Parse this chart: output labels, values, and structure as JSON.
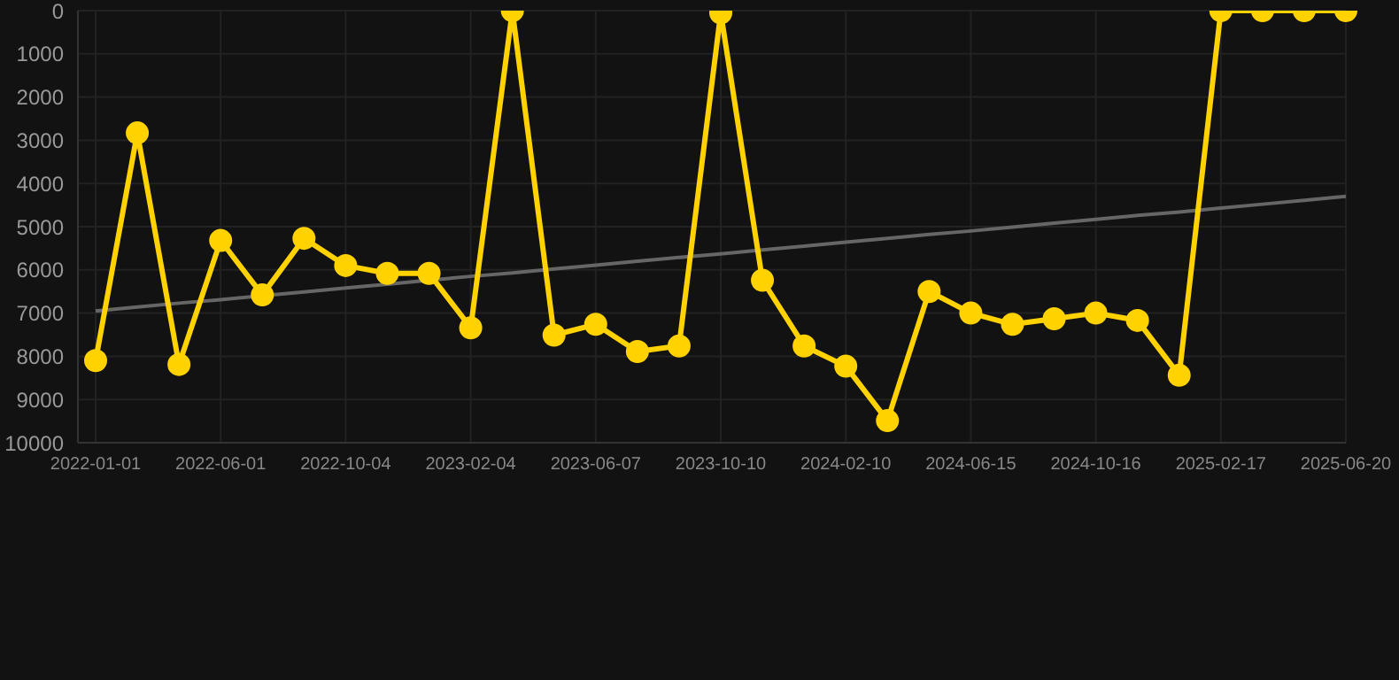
{
  "chart_data": {
    "type": "line",
    "categories": [
      "2022-01-01",
      null,
      null,
      "2022-06-01",
      null,
      null,
      "2022-10-04",
      null,
      null,
      "2023-02-04",
      null,
      null,
      "2023-06-07",
      null,
      null,
      "2023-10-10",
      null,
      null,
      "2024-02-10",
      null,
      null,
      "2024-06-15",
      null,
      null,
      "2024-10-16",
      null,
      null,
      "2025-02-17",
      null,
      null,
      "2025-06-20"
    ],
    "series": [
      {
        "color": "#ffd200",
        "values": [
          8100,
          2830,
          8190,
          5320,
          6580,
          5270,
          5900,
          6080,
          6080,
          7340,
          0,
          7510,
          7260,
          7890,
          7760,
          50,
          6240,
          7760,
          8230,
          9490,
          6500,
          7000,
          7260,
          7130,
          7000,
          7170,
          8440,
          0,
          0,
          0,
          0
        ],
        "marker": "circle"
      },
      {
        "type": "line",
        "color": "#666666",
        "values": [
          6950,
          6860,
          6770,
          6690,
          6600,
          6510,
          6420,
          6330,
          6240,
          6150,
          6070,
          5980,
          5890,
          5800,
          5710,
          5630,
          5540,
          5450,
          5360,
          5270,
          5180,
          5100,
          5010,
          4920,
          4830,
          4740,
          4660,
          4570,
          4480,
          4390,
          4300
        ],
        "marker": "none"
      }
    ],
    "ylim": [
      10000,
      0
    ],
    "yticks": [
      0,
      1000,
      2000,
      3000,
      4000,
      5000,
      6000,
      7000,
      8000,
      9000,
      10000
    ],
    "grid": true
  }
}
